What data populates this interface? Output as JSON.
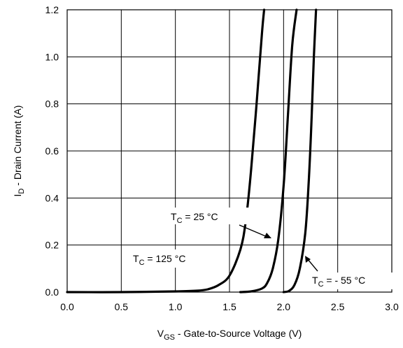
{
  "chart_data": {
    "type": "line",
    "xlabel": {
      "base": "V",
      "sub": "GS",
      "rest": " - Gate-to-Source Voltage (V)"
    },
    "ylabel": {
      "base": "I",
      "sub": "D",
      "rest": " - Drain Current (A)"
    },
    "xlim": [
      0,
      3
    ],
    "ylim": [
      0,
      1.2
    ],
    "xticks": [
      "0.0",
      "0.5",
      "1.0",
      "1.5",
      "2.0",
      "2.5",
      "3.0"
    ],
    "yticks": [
      "0.0",
      "0.2",
      "0.4",
      "0.6",
      "0.8",
      "1.0",
      "1.2"
    ],
    "grid": true,
    "series": [
      {
        "name": "TC = 125 °C",
        "x": [
          0.0,
          0.5,
          1.0,
          1.2,
          1.3,
          1.4,
          1.5,
          1.6,
          1.65,
          1.7,
          1.75,
          1.8,
          1.82
        ],
        "y": [
          0.0,
          0.0,
          0.003,
          0.006,
          0.012,
          0.03,
          0.07,
          0.18,
          0.3,
          0.52,
          0.8,
          1.1,
          1.2
        ]
      },
      {
        "name": "TC = 25 °C",
        "x": [
          1.6,
          1.7,
          1.8,
          1.85,
          1.9,
          1.95,
          2.0,
          2.04,
          2.08,
          2.12
        ],
        "y": [
          0.0,
          0.003,
          0.015,
          0.04,
          0.1,
          0.22,
          0.45,
          0.75,
          1.05,
          1.2
        ]
      },
      {
        "name": "TC = - 55 °C",
        "x": [
          2.0,
          2.05,
          2.1,
          2.15,
          2.2,
          2.23,
          2.26,
          2.28,
          2.3
        ],
        "y": [
          0.0,
          0.005,
          0.03,
          0.1,
          0.25,
          0.45,
          0.75,
          1.0,
          1.2
        ]
      }
    ],
    "annotations": [
      {
        "base": "T",
        "sub": "C",
        "rest": " = 125 °C"
      },
      {
        "base": "T",
        "sub": "C",
        "rest": " = 25 °C"
      },
      {
        "base": "T",
        "sub": "C",
        "rest": " = - 55 °C"
      }
    ]
  }
}
